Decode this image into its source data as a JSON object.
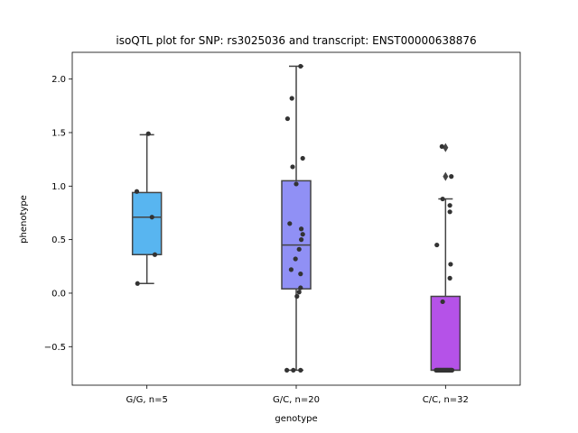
{
  "chart_data": {
    "type": "box",
    "title": "isoQTL plot for SNP: rs3025036 and transcript: ENST00000638876",
    "xlabel": "genotype",
    "ylabel": "phenotype",
    "ylim": [
      -0.86,
      2.25
    ],
    "yticks": [
      -0.5,
      0.0,
      0.5,
      1.0,
      1.5,
      2.0
    ],
    "ytick_labels": [
      "−0.5",
      "0.0",
      "0.5",
      "1.0",
      "1.5",
      "2.0"
    ],
    "grid": false,
    "categories": [
      "G/G, n=5",
      "G/C, n=20",
      "C/C, n=32"
    ],
    "boxes": [
      {
        "category": "G/G, n=5",
        "color": "#58b5f0",
        "whisker_low": 0.09,
        "q1": 0.36,
        "median": 0.71,
        "q3": 0.94,
        "whisker_high": 1.48,
        "outliers": [],
        "points": [
          {
            "x": -0.14,
            "y": 0.95
          },
          {
            "x": -0.13,
            "y": 0.09
          },
          {
            "x": 0.02,
            "y": 1.49
          },
          {
            "x": 0.07,
            "y": 0.71
          },
          {
            "x": 0.11,
            "y": 0.36
          }
        ]
      },
      {
        "category": "G/C, n=20",
        "color": "#9090f5",
        "whisker_low": -0.72,
        "q1": 0.04,
        "median": 0.45,
        "q3": 1.05,
        "whisker_high": 2.12,
        "outliers": [],
        "points": [
          {
            "x": 0.06,
            "y": 2.12
          },
          {
            "x": -0.06,
            "y": 1.82
          },
          {
            "x": -0.12,
            "y": 1.63
          },
          {
            "x": 0.09,
            "y": 1.26
          },
          {
            "x": -0.05,
            "y": 1.18
          },
          {
            "x": 0.0,
            "y": 1.02
          },
          {
            "x": -0.09,
            "y": 0.65
          },
          {
            "x": 0.07,
            "y": 0.6
          },
          {
            "x": 0.09,
            "y": 0.55
          },
          {
            "x": 0.07,
            "y": 0.5
          },
          {
            "x": 0.04,
            "y": 0.41
          },
          {
            "x": -0.01,
            "y": 0.32
          },
          {
            "x": -0.07,
            "y": 0.22
          },
          {
            "x": 0.06,
            "y": 0.18
          },
          {
            "x": 0.06,
            "y": 0.05
          },
          {
            "x": 0.04,
            "y": 0.01
          },
          {
            "x": 0.01,
            "y": -0.03
          },
          {
            "x": -0.13,
            "y": -0.72
          },
          {
            "x": -0.04,
            "y": -0.72
          },
          {
            "x": 0.06,
            "y": -0.72
          }
        ]
      },
      {
        "category": "C/C, n=32",
        "color": "#b552e8",
        "whisker_low": -0.72,
        "q1": -0.72,
        "median": -0.72,
        "q3": -0.03,
        "whisker_high": 0.88,
        "outliers": [
          1.36,
          1.09
        ],
        "points": [
          {
            "x": -0.05,
            "y": 1.37
          },
          {
            "x": 0.08,
            "y": 1.09
          },
          {
            "x": -0.04,
            "y": 0.88
          },
          {
            "x": 0.06,
            "y": 0.82
          },
          {
            "x": 0.06,
            "y": 0.76
          },
          {
            "x": -0.12,
            "y": 0.45
          },
          {
            "x": 0.07,
            "y": 0.27
          },
          {
            "x": 0.06,
            "y": 0.14
          },
          {
            "x": -0.04,
            "y": -0.08
          },
          {
            "x": -0.13,
            "y": -0.72
          },
          {
            "x": -0.12,
            "y": -0.72
          },
          {
            "x": -0.11,
            "y": -0.72
          },
          {
            "x": -0.1,
            "y": -0.72
          },
          {
            "x": -0.09,
            "y": -0.72
          },
          {
            "x": -0.08,
            "y": -0.72
          },
          {
            "x": -0.07,
            "y": -0.72
          },
          {
            "x": -0.06,
            "y": -0.72
          },
          {
            "x": -0.05,
            "y": -0.72
          },
          {
            "x": -0.04,
            "y": -0.72
          },
          {
            "x": -0.03,
            "y": -0.72
          },
          {
            "x": -0.02,
            "y": -0.72
          },
          {
            "x": -0.01,
            "y": -0.72
          },
          {
            "x": 0.0,
            "y": -0.72
          },
          {
            "x": 0.01,
            "y": -0.72
          },
          {
            "x": 0.02,
            "y": -0.72
          },
          {
            "x": 0.03,
            "y": -0.72
          },
          {
            "x": 0.04,
            "y": -0.72
          },
          {
            "x": 0.05,
            "y": -0.72
          },
          {
            "x": 0.06,
            "y": -0.72
          },
          {
            "x": 0.07,
            "y": -0.72
          },
          {
            "x": 0.08,
            "y": -0.72
          },
          {
            "x": 0.09,
            "y": -0.72
          }
        ]
      }
    ]
  }
}
